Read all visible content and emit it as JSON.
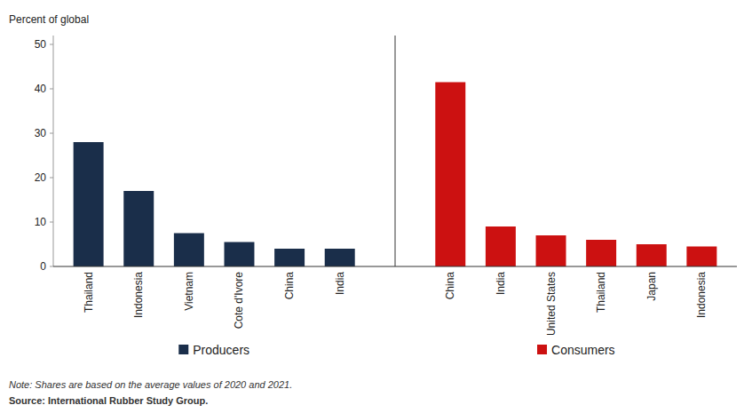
{
  "chart_data": {
    "type": "bar",
    "ylabel": "Percent of global",
    "categories": [
      "Thailand",
      "Indonesia",
      "Vietnam",
      "Cote d'Ivore",
      "China",
      "India",
      "China",
      "India",
      "United States",
      "Thailand",
      "Japan",
      "Indonesia"
    ],
    "series": [
      {
        "name": "Producers",
        "color": "#1a2e4a",
        "values": [
          28,
          17,
          7.5,
          5.5,
          4.0,
          4.0,
          null,
          null,
          null,
          null,
          null,
          null
        ]
      },
      {
        "name": "Consumers",
        "color": "#cc1111",
        "values": [
          null,
          null,
          null,
          null,
          null,
          null,
          41.5,
          9,
          7,
          6,
          5,
          4.5
        ]
      }
    ],
    "ylim": [
      0,
      52
    ],
    "yticks": [
      0,
      10,
      20,
      30,
      40,
      50
    ],
    "grid": false,
    "legend": "bottom",
    "note": "Note: Shares are based on the average values of 2020 and 2021.",
    "source": "Source: International Rubber Study Group."
  }
}
